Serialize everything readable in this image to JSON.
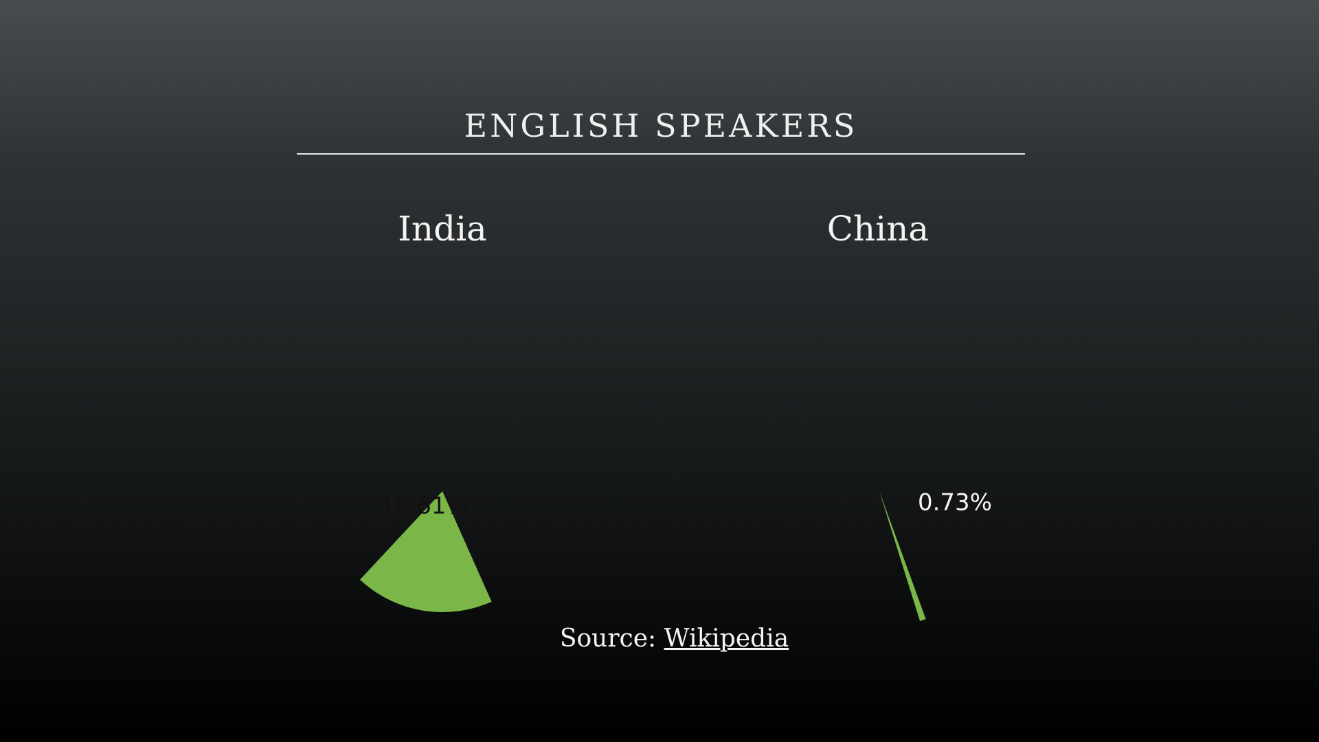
{
  "slide": {
    "title": "ENGLISH SPEAKERS"
  },
  "source": {
    "prefix": "Source:",
    "link_text": "Wikipedia"
  },
  "colors": {
    "slice": "#7ab648",
    "background_top": "#474d4e",
    "background_bottom": "#000000"
  },
  "chart_data": [
    {
      "type": "pie",
      "title": "India",
      "slices": [
        {
          "value": 18.61,
          "label": "18.61%"
        }
      ]
    },
    {
      "type": "pie",
      "title": "China",
      "slices": [
        {
          "value": 0.73,
          "label": "0.73%"
        }
      ]
    }
  ]
}
